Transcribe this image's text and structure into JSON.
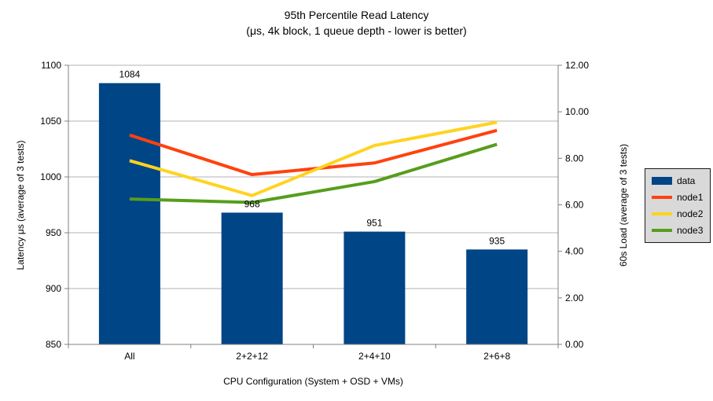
{
  "chart_data": {
    "type": "combo-bar-line",
    "title": "95th Percentile Read Latency",
    "subtitle": "(μs, 4k block, 1 queue depth - lower is better)",
    "xlabel": "CPU Configuration (System + OSD + VMs)",
    "categories": [
      "All",
      "2+2+12",
      "2+4+10",
      "2+6+8"
    ],
    "axes": {
      "left": {
        "label": "Latency μs (average of 3 tests)",
        "min": 850,
        "max": 1100,
        "tick_step": 50,
        "tick_format": "int"
      },
      "right": {
        "label": "60s Load (average of 3 tests)",
        "min": 0,
        "max": 12,
        "tick_step": 2,
        "tick_format": "2dp"
      }
    },
    "series": [
      {
        "name": "data",
        "type": "bar",
        "axis": "left",
        "color": "#004586",
        "values": [
          1084,
          968,
          951,
          935
        ],
        "data_labels": true
      },
      {
        "name": "node1",
        "type": "line",
        "axis": "right",
        "color": "#ff420e",
        "values": [
          9.0,
          7.3,
          7.8,
          9.2
        ]
      },
      {
        "name": "node2",
        "type": "line",
        "axis": "right",
        "color": "#ffd320",
        "values": [
          7.9,
          6.4,
          8.55,
          9.55
        ]
      },
      {
        "name": "node3",
        "type": "line",
        "axis": "right",
        "color": "#579d1c",
        "values": [
          6.25,
          6.1,
          7.0,
          8.6
        ]
      }
    ],
    "legend_position": "right",
    "grid": "horizontal",
    "colors": {
      "background": "#ffffff",
      "gridline": "#b3b3b3",
      "axis": "#808080",
      "text": "#000000",
      "legend_bg": "#d9d9d9",
      "legend_border": "#1a1a1a"
    }
  }
}
